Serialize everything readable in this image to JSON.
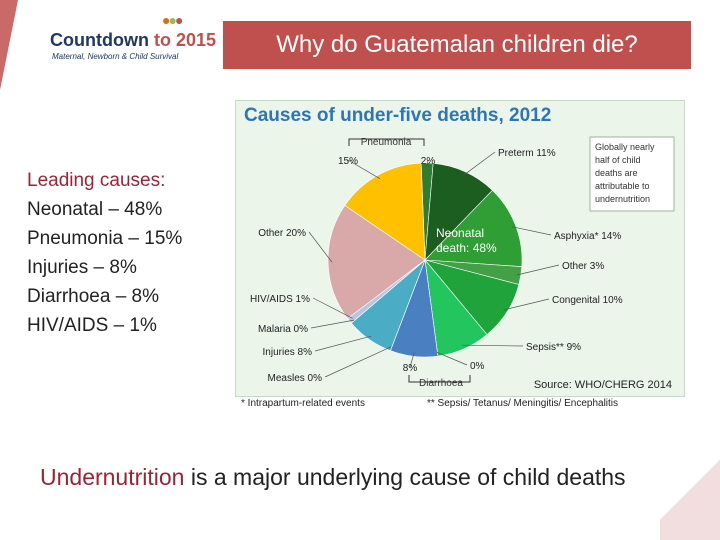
{
  "slide": {
    "title": "Why do Guatemalan children die?",
    "logo": {
      "main": "Countdown",
      "year": "to 2015",
      "sub": "Maternal, Newborn & Child Survival"
    },
    "leading": {
      "heading": "Leading causes:",
      "items": [
        "Neonatal – 48%",
        "Pneumonia – 15%",
        "Injuries – 8%",
        "Diarrhoea – 8%",
        "HIV/AIDS – 1%"
      ]
    },
    "bottom": {
      "highlight": "Undernutrition",
      "rest": " is a major underlying cause of child deaths"
    },
    "footnotes": [
      "* Intrapartum-related events",
      "** Sepsis/ Tetanus/ Meningitis/ Encephalitis"
    ],
    "colors": {
      "accent": "#c0504d",
      "chart_title": "#2e75b6"
    }
  },
  "chart_data": {
    "type": "pie",
    "title": "Causes of under-five deaths, 2012",
    "source": "Source: WHO/CHERG 2014",
    "note": "Globally nearly half of child deaths are attributable to undernutrition",
    "group_label": "Neonatal death: 48%",
    "slices": [
      {
        "name": "Pneumonia (neonatal)",
        "value": 2,
        "label": "2%",
        "color": "#2e7d32"
      },
      {
        "name": "Preterm",
        "value": 11,
        "label": "Preterm 11%",
        "color": "#1b5e20"
      },
      {
        "name": "Asphyxia*",
        "value": 14,
        "label": "Asphyxia* 14%",
        "color": "#2e9e35"
      },
      {
        "name": "Other (neonatal)",
        "value": 3,
        "label": "Other 3%",
        "color": "#43a047"
      },
      {
        "name": "Congenital",
        "value": 10,
        "label": "Congenital 10%",
        "color": "#1fa33a"
      },
      {
        "name": "Sepsis**",
        "value": 9,
        "label": "Sepsis** 9%",
        "color": "#22c55e"
      },
      {
        "name": "Diarrhoea (neonatal)",
        "value": 0,
        "label": "0%",
        "color": "#66bb6a"
      },
      {
        "name": "Diarrhoea",
        "value": 8,
        "label": "8%",
        "color": "#4a7fc1"
      },
      {
        "name": "Measles",
        "value": 0,
        "label": "Measles 0%",
        "color": "#8fb8d8"
      },
      {
        "name": "Injuries",
        "value": 8,
        "label": "Injuries 8%",
        "color": "#4bacc6"
      },
      {
        "name": "Malaria",
        "value": 0,
        "label": "Malaria 0%",
        "color": "#9dc3e6"
      },
      {
        "name": "HIV/AIDS",
        "value": 1,
        "label": "HIV/AIDS 1%",
        "color": "#b4c7e7"
      },
      {
        "name": "Other",
        "value": 20,
        "label": "Other 20%",
        "color": "#d9a8a8"
      },
      {
        "name": "Pneumonia",
        "value": 15,
        "label": "15%",
        "color": "#ffc000"
      }
    ],
    "bracket_labels": {
      "pneumonia": "Pneumonia",
      "diarrhoea": "Diarrhoea"
    }
  }
}
